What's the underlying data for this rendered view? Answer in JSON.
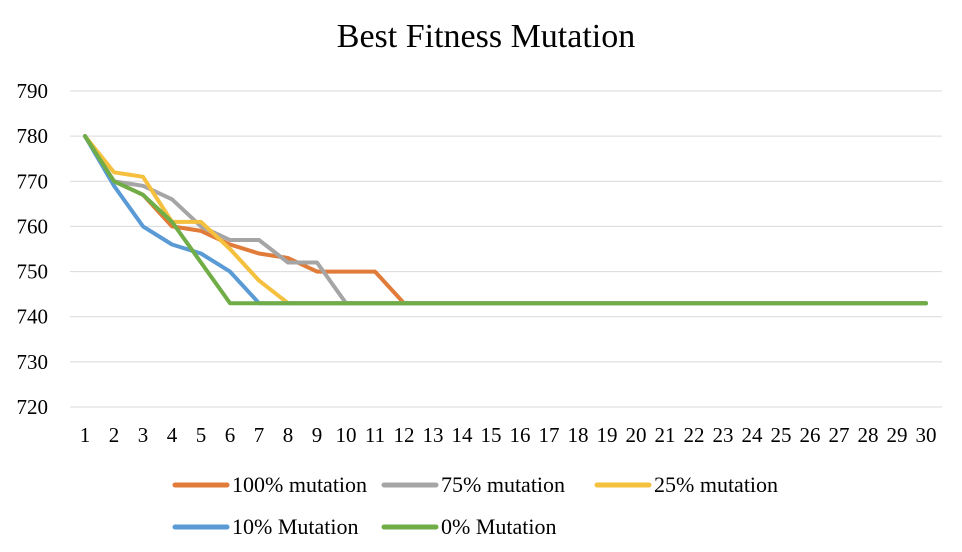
{
  "chart_data": {
    "type": "line",
    "title": "Best Fitness Mutation",
    "xlabel": "",
    "ylabel": "",
    "ylim": [
      720,
      790
    ],
    "yticks": [
      "720",
      "730",
      "740",
      "750",
      "760",
      "770",
      "780",
      "790"
    ],
    "categories": [
      "1",
      "2",
      "3",
      "4",
      "5",
      "6",
      "7",
      "8",
      "9",
      "10",
      "11",
      "12",
      "13",
      "14",
      "15",
      "16",
      "17",
      "18",
      "19",
      "20",
      "21",
      "22",
      "23",
      "24",
      "25",
      "26",
      "27",
      "28",
      "29",
      "30"
    ],
    "grid": "horizontal",
    "legend_position": "bottom",
    "series": [
      {
        "name": "100% mutation",
        "color": "#E07B39",
        "values": [
          780,
          770,
          767,
          760,
          759,
          756,
          754,
          753,
          750,
          750,
          750,
          743,
          743,
          743,
          743,
          743,
          743,
          743,
          743,
          743,
          743,
          743,
          743,
          743,
          743,
          743,
          743,
          743,
          743,
          743
        ]
      },
      {
        "name": "75% mutation",
        "color": "#A5A5A5",
        "values": [
          780,
          770,
          769,
          766,
          760,
          757,
          757,
          752,
          752,
          743,
          743,
          743,
          743,
          743,
          743,
          743,
          743,
          743,
          743,
          743,
          743,
          743,
          743,
          743,
          743,
          743,
          743,
          743,
          743,
          743
        ]
      },
      {
        "name": "25% mutation",
        "color": "#F4C03E",
        "values": [
          780,
          772,
          771,
          761,
          761,
          755,
          748,
          743,
          743,
          743,
          743,
          743,
          743,
          743,
          743,
          743,
          743,
          743,
          743,
          743,
          743,
          743,
          743,
          743,
          743,
          743,
          743,
          743,
          743,
          743
        ]
      },
      {
        "name": "10% Mutation",
        "color": "#5B9BD5",
        "values": [
          780,
          769,
          760,
          756,
          754,
          750,
          743,
          743,
          743,
          743,
          743,
          743,
          743,
          743,
          743,
          743,
          743,
          743,
          743,
          743,
          743,
          743,
          743,
          743,
          743,
          743,
          743,
          743,
          743,
          743
        ]
      },
      {
        "name": "0% Mutation",
        "color": "#70AD47",
        "values": [
          780,
          770,
          767,
          761,
          752,
          743,
          743,
          743,
          743,
          743,
          743,
          743,
          743,
          743,
          743,
          743,
          743,
          743,
          743,
          743,
          743,
          743,
          743,
          743,
          743,
          743,
          743,
          743,
          743,
          743
        ]
      }
    ]
  }
}
